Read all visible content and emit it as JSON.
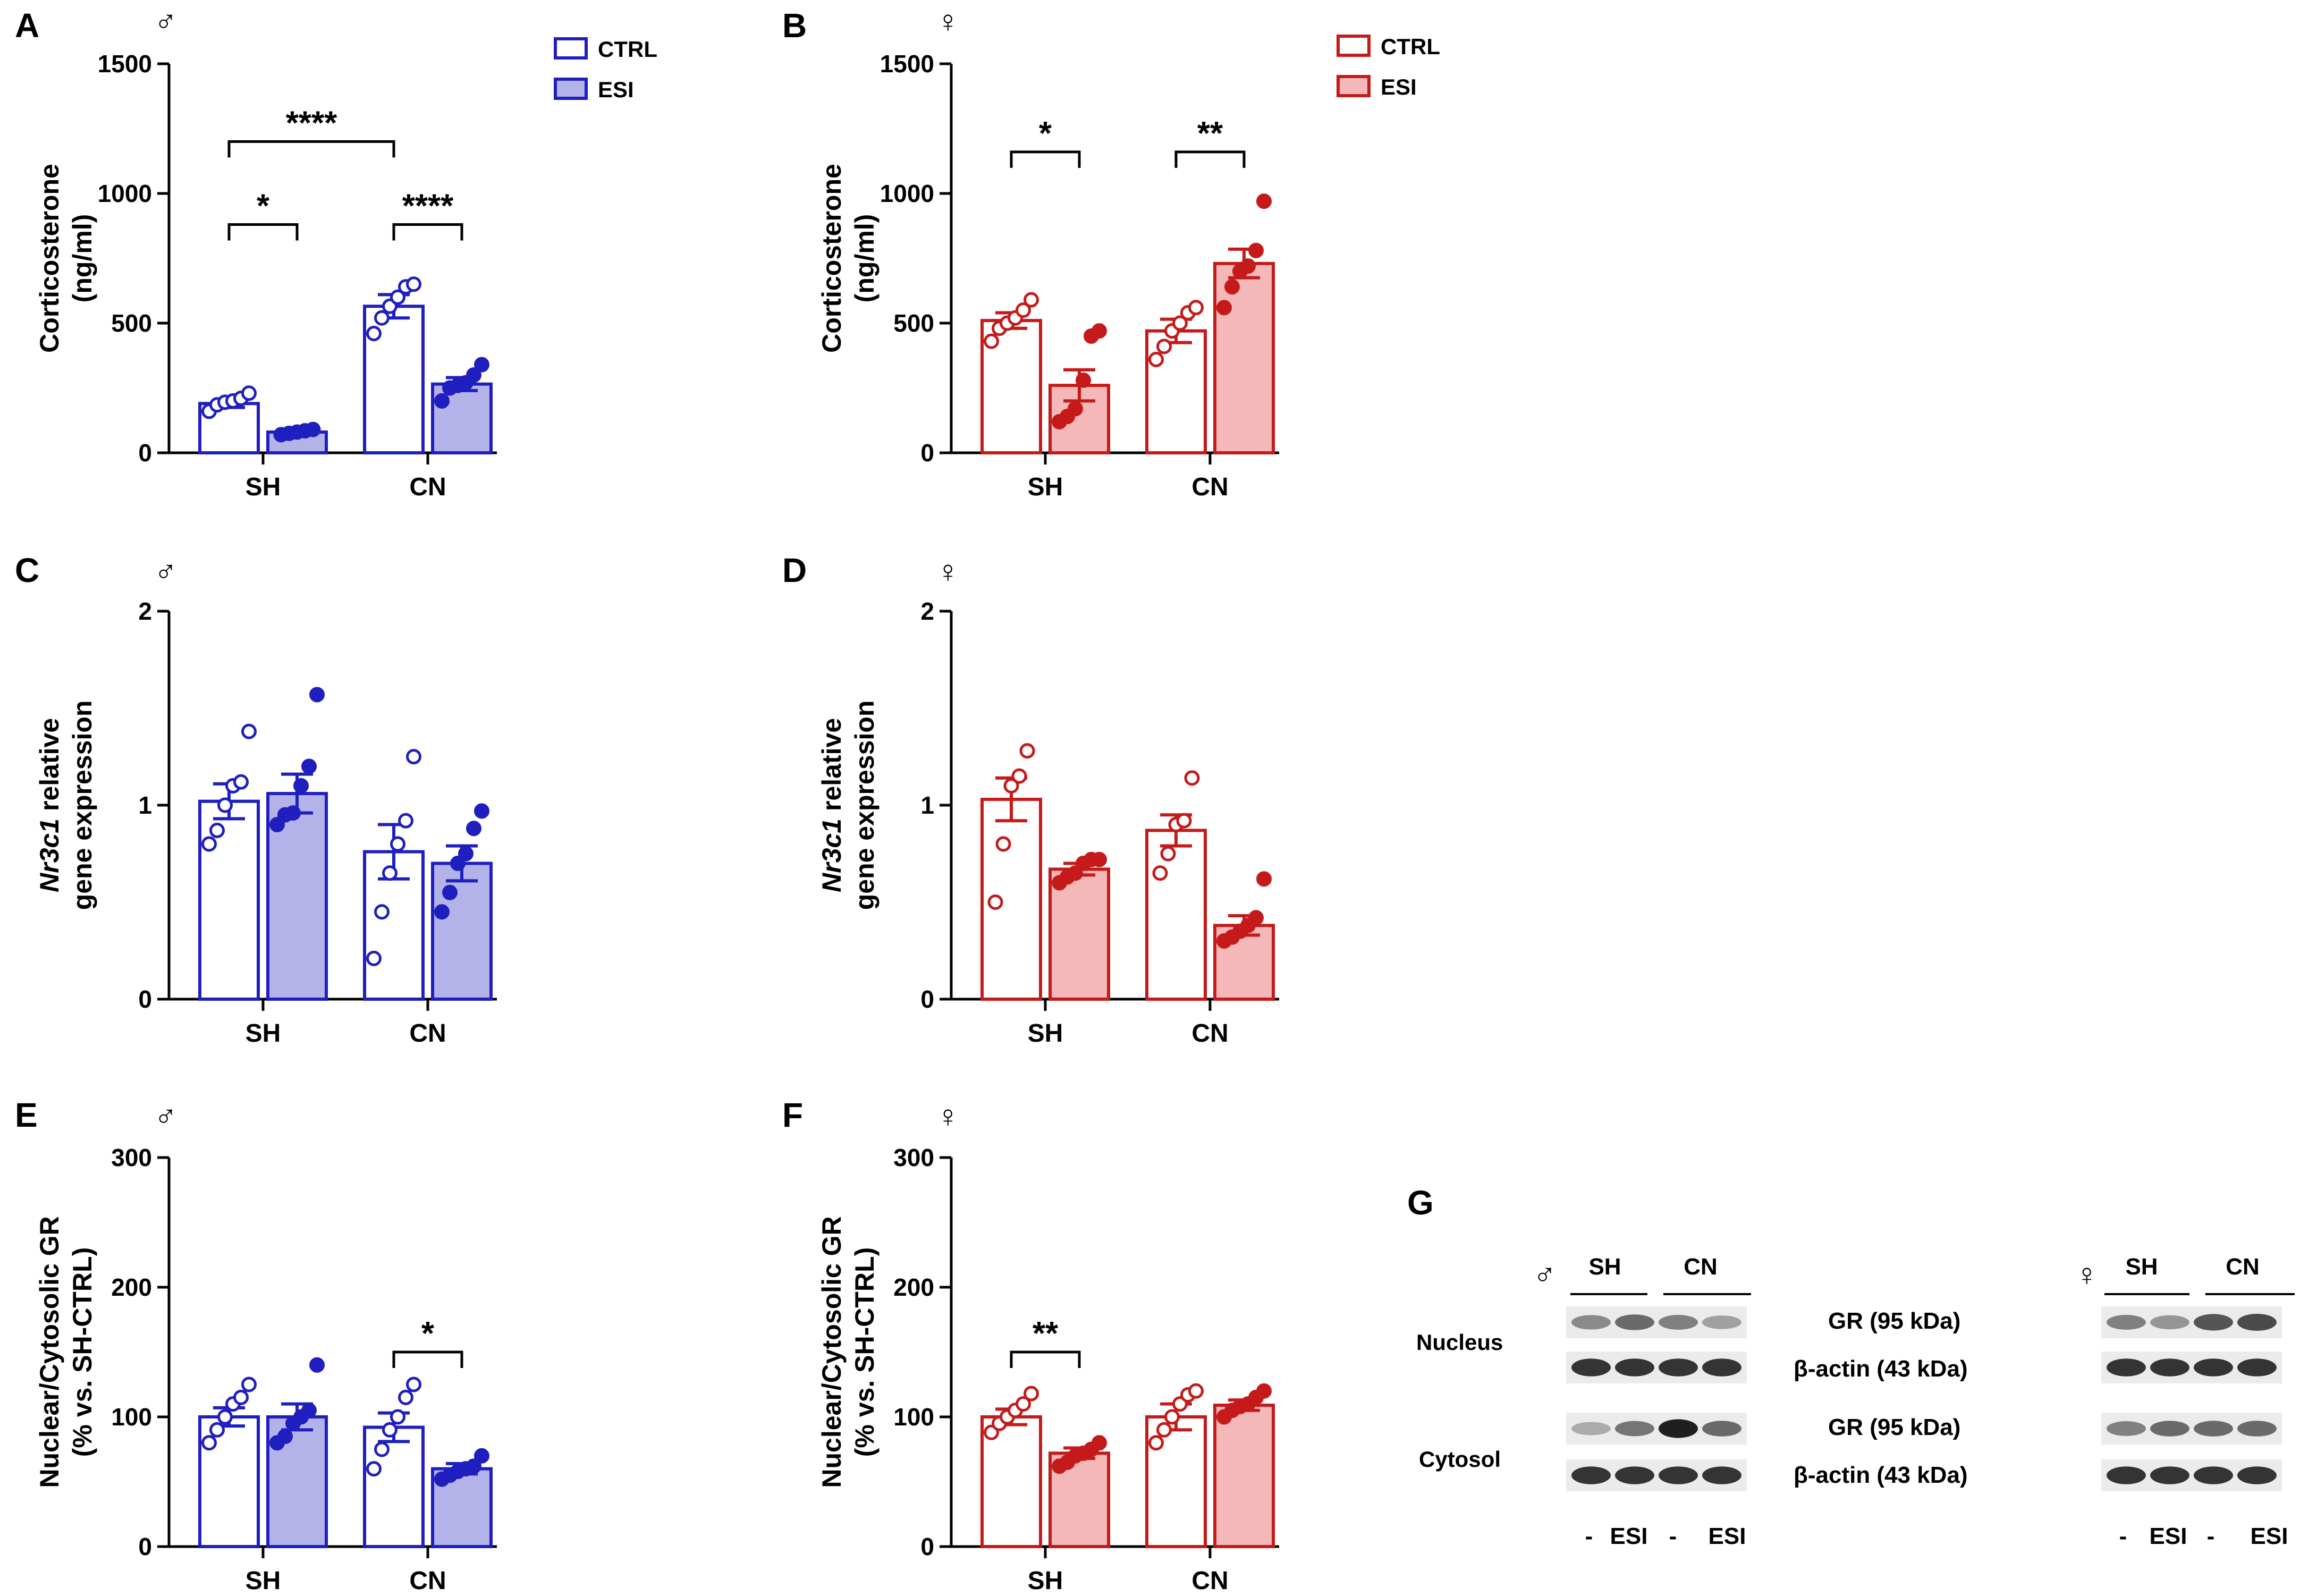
{
  "colors": {
    "male": "#1f1fbf",
    "male_fill": "#b3b3ea",
    "female": "#c41a1a",
    "female_fill": "#f5b8b8",
    "axis": "#000000"
  },
  "legend_labels": {
    "ctrl": "CTRL",
    "esi": "ESI"
  },
  "chart_data": [
    {
      "id": "A",
      "type": "bar",
      "panel": "A",
      "sex": "♂",
      "theme": "male",
      "categories": [
        "SH",
        "CN"
      ],
      "ylabel_lines": [
        "Corticosterone",
        "(ng/ml)"
      ],
      "ylim": [
        0,
        1500
      ],
      "yticks": [
        0,
        500,
        1000,
        1500
      ],
      "legend": true,
      "series": [
        {
          "name": "CTRL",
          "values": [
            190,
            565
          ],
          "sem": [
            15,
            45
          ],
          "points": [
            [
              160,
              185,
              195,
              200,
              210,
              230
            ],
            [
              460,
              520,
              565,
              600,
              640,
              650
            ]
          ]
        },
        {
          "name": "ESI",
          "values": [
            80,
            265
          ],
          "sem": [
            8,
            25
          ],
          "points": [
            [
              70,
              75,
              80,
              85,
              90
            ],
            [
              200,
              250,
              260,
              270,
              300,
              340
            ]
          ]
        }
      ],
      "significance": [
        {
          "from": [
            0,
            0
          ],
          "to": [
            0,
            1
          ],
          "label": "*",
          "level": 880
        },
        {
          "from": [
            1,
            0
          ],
          "to": [
            1,
            1
          ],
          "label": "****",
          "level": 880
        },
        {
          "from": [
            0,
            0
          ],
          "to": [
            1,
            0
          ],
          "label": "****",
          "level": 1200
        }
      ]
    },
    {
      "id": "B",
      "type": "bar",
      "panel": "B",
      "sex": "♀",
      "theme": "female",
      "categories": [
        "SH",
        "CN"
      ],
      "ylabel_lines": [
        "Corticosterone",
        "(ng/ml)"
      ],
      "ylim": [
        0,
        1500
      ],
      "yticks": [
        0,
        500,
        1000,
        1500
      ],
      "legend": true,
      "series": [
        {
          "name": "CTRL",
          "values": [
            510,
            470
          ],
          "sem": [
            30,
            45
          ],
          "points": [
            [
              430,
              480,
              500,
              520,
              550,
              590
            ],
            [
              360,
              410,
              470,
              500,
              540,
              560
            ]
          ]
        },
        {
          "name": "ESI",
          "values": [
            260,
            730
          ],
          "sem": [
            60,
            55
          ],
          "points": [
            [
              120,
              140,
              170,
              280,
              450,
              470
            ],
            [
              560,
              640,
              700,
              720,
              780,
              970
            ]
          ]
        }
      ],
      "significance": [
        {
          "from": [
            0,
            0
          ],
          "to": [
            0,
            1
          ],
          "label": "*",
          "level": 1160
        },
        {
          "from": [
            1,
            0
          ],
          "to": [
            1,
            1
          ],
          "label": "**",
          "level": 1160
        }
      ]
    },
    {
      "id": "C",
      "type": "bar",
      "panel": "C",
      "sex": "♂",
      "theme": "male",
      "categories": [
        "SH",
        "CN"
      ],
      "ylabel_lines": [
        "Nr3c1 relative",
        "gene expression"
      ],
      "ylabel_italic_word": "Nr3c1",
      "ylim": [
        0,
        2
      ],
      "yticks": [
        0,
        1,
        2
      ],
      "legend": false,
      "series": [
        {
          "name": "CTRL",
          "values": [
            1.02,
            0.76
          ],
          "sem": [
            0.09,
            0.14
          ],
          "points": [
            [
              0.8,
              0.87,
              1.0,
              1.1,
              1.12,
              1.38
            ],
            [
              0.21,
              0.45,
              0.65,
              0.8,
              0.92,
              1.25
            ]
          ]
        },
        {
          "name": "ESI",
          "values": [
            1.06,
            0.7
          ],
          "sem": [
            0.1,
            0.09
          ],
          "points": [
            [
              0.9,
              0.95,
              0.96,
              1.1,
              1.2,
              1.57
            ],
            [
              0.45,
              0.55,
              0.7,
              0.75,
              0.88,
              0.97
            ]
          ]
        }
      ],
      "significance": []
    },
    {
      "id": "D",
      "type": "bar",
      "panel": "D",
      "sex": "♀",
      "theme": "female",
      "categories": [
        "SH",
        "CN"
      ],
      "ylabel_lines": [
        "Nr3c1 relative",
        "gene expression"
      ],
      "ylabel_italic_word": "Nr3c1",
      "ylim": [
        0,
        2
      ],
      "yticks": [
        0,
        1,
        2
      ],
      "legend": false,
      "series": [
        {
          "name": "CTRL",
          "values": [
            1.03,
            0.87
          ],
          "sem": [
            0.11,
            0.08
          ],
          "points": [
            [
              0.5,
              0.8,
              1.1,
              1.15,
              1.28
            ],
            [
              0.65,
              0.75,
              0.9,
              0.92,
              1.14
            ]
          ]
        },
        {
          "name": "ESI",
          "values": [
            0.67,
            0.38
          ],
          "sem": [
            0.03,
            0.05
          ],
          "points": [
            [
              0.6,
              0.63,
              0.65,
              0.7,
              0.72,
              0.72
            ],
            [
              0.3,
              0.32,
              0.35,
              0.38,
              0.42,
              0.62
            ]
          ]
        }
      ],
      "significance": []
    },
    {
      "id": "E",
      "type": "bar",
      "panel": "E",
      "sex": "♂",
      "theme": "male",
      "categories": [
        "SH",
        "CN"
      ],
      "ylabel_lines": [
        "Nuclear/Cytosolic GR",
        "(% vs. SH-CTRL)"
      ],
      "ylim": [
        0,
        300
      ],
      "yticks": [
        0,
        100,
        200,
        300
      ],
      "legend": false,
      "series": [
        {
          "name": "CTRL",
          "values": [
            100,
            92
          ],
          "sem": [
            7,
            11
          ],
          "points": [
            [
              80,
              90,
              100,
              110,
              115,
              125
            ],
            [
              60,
              75,
              90,
              100,
              115,
              125
            ]
          ]
        },
        {
          "name": "ESI",
          "values": [
            100,
            60
          ],
          "sem": [
            10,
            4
          ],
          "points": [
            [
              80,
              85,
              95,
              100,
              105,
              140
            ],
            [
              52,
              55,
              58,
              60,
              62,
              70
            ]
          ]
        }
      ],
      "significance": [
        {
          "from": [
            1,
            0
          ],
          "to": [
            1,
            1
          ],
          "label": "*",
          "level": 150
        }
      ]
    },
    {
      "id": "F",
      "type": "bar",
      "panel": "F",
      "sex": "♀",
      "theme": "female",
      "categories": [
        "SH",
        "CN"
      ],
      "ylabel_lines": [
        "Nuclear/Cytosolic GR",
        "(% vs. SH-CTRL)"
      ],
      "ylim": [
        0,
        300
      ],
      "yticks": [
        0,
        100,
        200,
        300
      ],
      "legend": false,
      "series": [
        {
          "name": "CTRL",
          "values": [
            100,
            100
          ],
          "sem": [
            6,
            10
          ],
          "points": [
            [
              88,
              95,
              100,
              105,
              110,
              118
            ],
            [
              80,
              90,
              100,
              110,
              117,
              120
            ]
          ]
        },
        {
          "name": "ESI",
          "values": [
            72,
            109
          ],
          "sem": [
            4,
            4
          ],
          "points": [
            [
              62,
              65,
              70,
              72,
              75,
              80
            ],
            [
              100,
              105,
              108,
              110,
              115,
              120
            ]
          ]
        }
      ],
      "significance": [
        {
          "from": [
            0,
            0
          ],
          "to": [
            0,
            1
          ],
          "label": "**",
          "level": 150
        }
      ]
    }
  ],
  "western_blot": {
    "panel": "G",
    "male_symbol": "♂",
    "female_symbol": "♀",
    "group_labels": [
      "SH",
      "CN"
    ],
    "lane_labels": [
      "-",
      "ESI",
      "-",
      "ESI"
    ],
    "compartments": [
      "Nucleus",
      "Cytosol"
    ],
    "bands": [
      "GR (95 kDa)",
      "β-actin (43 kDa)",
      "GR (95 kDa)",
      "β-actin (43 kDa)"
    ],
    "male_intensity": [
      [
        0.45,
        0.6,
        0.5,
        0.35
      ],
      [
        0.85,
        0.85,
        0.85,
        0.85
      ],
      [
        0.3,
        0.55,
        0.95,
        0.6
      ],
      [
        0.85,
        0.85,
        0.85,
        0.85
      ]
    ],
    "female_intensity": [
      [
        0.5,
        0.4,
        0.7,
        0.75
      ],
      [
        0.85,
        0.85,
        0.85,
        0.85
      ],
      [
        0.5,
        0.6,
        0.6,
        0.6
      ],
      [
        0.85,
        0.85,
        0.85,
        0.85
      ]
    ]
  }
}
